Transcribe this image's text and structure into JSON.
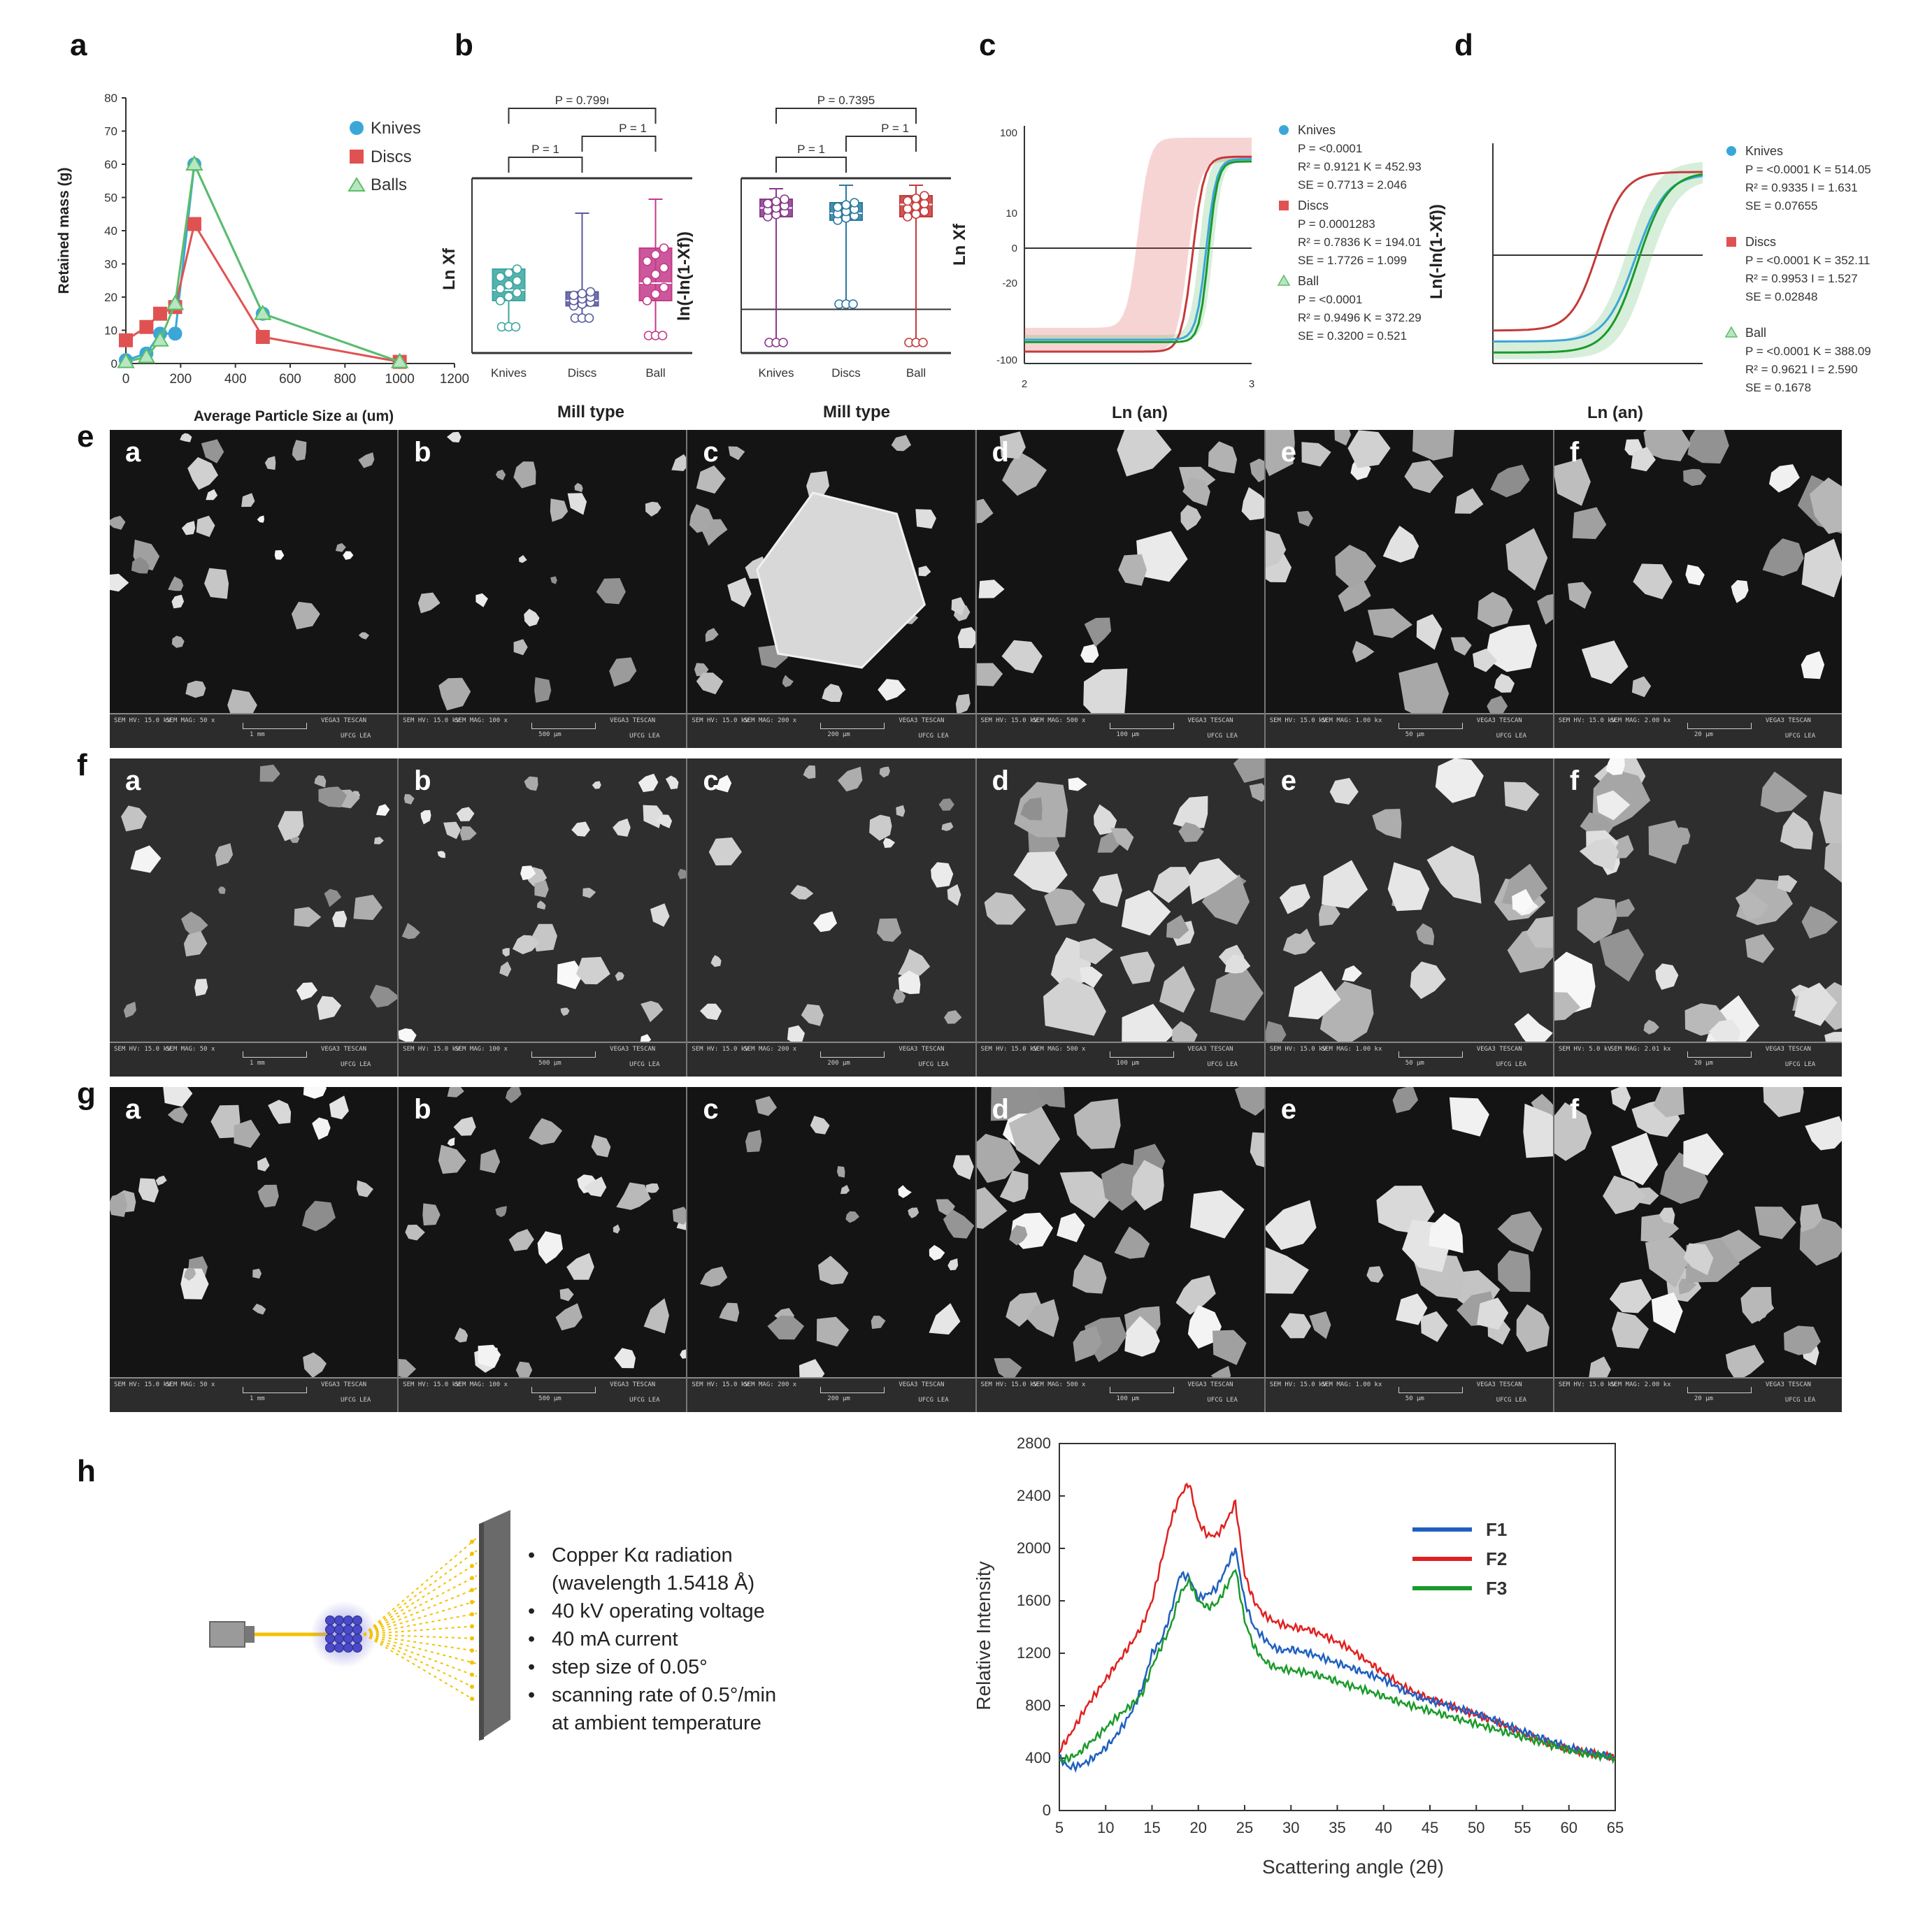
{
  "panel_labels": [
    "a",
    "b",
    "c",
    "d",
    "e",
    "f",
    "g",
    "h"
  ],
  "chart_data": [
    {
      "id": "a",
      "type": "line",
      "xlabel": "Average Particle Size aı (um)",
      "ylabel": "Retained mass (g)",
      "xlim": [
        0,
        1200
      ],
      "ylim": [
        0,
        80
      ],
      "xticks": [
        "0",
        "200",
        "400",
        "600",
        "800",
        "1000",
        "1200"
      ],
      "yticks": [
        "0",
        "10",
        "20",
        "30",
        "40",
        "50",
        "60",
        "70",
        "80"
      ],
      "series": [
        {
          "name": "Knives",
          "color": "#3ba7d8",
          "marker": "circle",
          "x": [
            0,
            75,
            125,
            180,
            250,
            500,
            1000
          ],
          "values": [
            1,
            3,
            9,
            9,
            60,
            15,
            0.5
          ]
        },
        {
          "name": "Discs",
          "color": "#e05252",
          "marker": "square",
          "x": [
            0,
            75,
            125,
            180,
            250,
            500,
            1000
          ],
          "values": [
            7,
            11,
            15,
            17,
            42,
            8,
            0.5
          ]
        },
        {
          "name": "Balls",
          "color": "#5bbd6b",
          "marker": "triangle",
          "x": [
            0,
            75,
            125,
            180,
            250,
            500,
            1000
          ],
          "values": [
            0.5,
            2,
            7,
            18,
            60,
            15,
            0.5
          ]
        }
      ]
    },
    {
      "id": "b1",
      "type": "box",
      "xlabel": "Mill type",
      "ylabel": "Ln Xf",
      "categories": [
        "Knives",
        "Discs",
        "Ball"
      ],
      "colors": [
        "#3aa6a0",
        "#5a5aa0",
        "#c43a8a"
      ],
      "boxes": [
        {
          "min": 0.15,
          "q1": 0.3,
          "median": 0.36,
          "q3": 0.48,
          "max": 0.48
        },
        {
          "min": 0.2,
          "q1": 0.27,
          "median": 0.3,
          "q3": 0.35,
          "max": 0.8
        },
        {
          "min": 0.1,
          "q1": 0.3,
          "median": 0.4,
          "q3": 0.6,
          "max": 0.88
        }
      ],
      "p_values": [
        "P = 1",
        "P = 1",
        "P = 0.799ı"
      ]
    },
    {
      "id": "b2",
      "type": "box",
      "xlabel": "Mill type",
      "ylabel": "ln(-ln(1-Xf))",
      "categories": [
        "Knives",
        "Discs",
        "Ball"
      ],
      "colors": [
        "#8a3a8a",
        "#2a7aa0",
        "#c43a3a"
      ],
      "boxes": [
        {
          "min": 0.06,
          "q1": 0.78,
          "median": 0.83,
          "q3": 0.88,
          "max": 0.94
        },
        {
          "min": 0.28,
          "q1": 0.76,
          "median": 0.8,
          "q3": 0.86,
          "max": 0.96
        },
        {
          "min": 0.06,
          "q1": 0.78,
          "median": 0.85,
          "q3": 0.9,
          "max": 0.96
        }
      ],
      "p_values": [
        "P = 1",
        "P = 1",
        "P = 0.7395"
      ]
    },
    {
      "id": "c",
      "type": "line",
      "xlabel": "Ln (an)",
      "ylabel": "Ln Xf",
      "yticks": [
        "100",
        "10",
        "0",
        "-20",
        "-100"
      ],
      "series": [
        {
          "name": "Knives",
          "color": "#3ba7d8",
          "lines": [
            "P = <0.0001",
            "R² = 0.9121 K = 452.93",
            "SE = 0.7713 = 2.046"
          ]
        },
        {
          "name": "Discs",
          "color": "#e05252",
          "lines": [
            "P = 0.0001283",
            "R² = 0.7836 K = 194.01",
            "SE = 1.7726 = 1.099"
          ]
        },
        {
          "name": "Ball",
          "color": "#5bbd6b",
          "lines": [
            "P = <0.0001",
            "R² = 0.9496 K = 372.29",
            "SE = 0.3200 = 0.521"
          ]
        }
      ]
    },
    {
      "id": "d",
      "type": "line",
      "xlabel": "Ln (an)",
      "ylabel": "Ln(-ln(1-Xf))",
      "series": [
        {
          "name": "Knives",
          "color": "#3ba7d8",
          "lines": [
            "P = <0.0001 K = 514.05",
            "R² = 0.9335 I = 1.631",
            "SE = 0.07655"
          ]
        },
        {
          "name": "Discs",
          "color": "#e05252",
          "lines": [
            "P = <0.0001 K = 352.11",
            "R² = 0.9953 I = 1.527",
            "SE = 0.02848"
          ]
        },
        {
          "name": "Ball",
          "color": "#5bbd6b",
          "lines": [
            "P = <0.0001 K = 388.09",
            "R² = 0.9621 I = 2.590",
            "SE = 0.1678"
          ]
        }
      ]
    },
    {
      "id": "h",
      "type": "line",
      "xlabel": "Scattering angle (2θ)",
      "ylabel": "Relative Intensity",
      "xlim": [
        5,
        65
      ],
      "ylim": [
        0,
        2800
      ],
      "xticks": [
        "5",
        "10",
        "15",
        "20",
        "25",
        "30",
        "35",
        "40",
        "45",
        "50",
        "55",
        "60",
        "65"
      ],
      "yticks": [
        "0",
        "400",
        "800",
        "1200",
        "1600",
        "2000",
        "2400",
        "2800"
      ],
      "x": [
        5,
        6,
        7,
        8,
        9,
        10,
        11,
        12,
        13,
        14,
        15,
        16,
        17,
        18,
        19,
        20,
        21,
        22,
        23,
        24,
        25,
        26,
        27,
        28,
        29,
        30,
        32,
        34,
        36,
        38,
        40,
        42,
        44,
        46,
        48,
        50,
        52,
        54,
        56,
        58,
        60,
        62,
        64,
        65
      ],
      "series": [
        {
          "name": "F1",
          "color": "#1f5fc0",
          "values": [
            400,
            330,
            340,
            370,
            420,
            480,
            560,
            660,
            780,
            950,
            1200,
            1300,
            1500,
            1800,
            1780,
            1620,
            1650,
            1700,
            1850,
            2000,
            1600,
            1400,
            1320,
            1250,
            1220,
            1230,
            1200,
            1150,
            1100,
            1050,
            1000,
            920,
            860,
            820,
            780,
            740,
            690,
            630,
            580,
            530,
            480,
            450,
            420,
            400
          ]
        },
        {
          "name": "F2",
          "color": "#e02020",
          "values": [
            460,
            560,
            680,
            800,
            900,
            1000,
            1100,
            1200,
            1300,
            1420,
            1600,
            1900,
            2200,
            2400,
            2500,
            2200,
            2100,
            2100,
            2200,
            2350,
            1800,
            1600,
            1500,
            1450,
            1420,
            1400,
            1380,
            1320,
            1250,
            1150,
            1050,
            950,
            880,
            830,
            780,
            730,
            680,
            620,
            560,
            510,
            470,
            440,
            420,
            400
          ]
        },
        {
          "name": "F3",
          "color": "#1a9a2a",
          "values": [
            380,
            400,
            430,
            500,
            560,
            630,
            700,
            760,
            820,
            900,
            1100,
            1250,
            1400,
            1650,
            1750,
            1600,
            1550,
            1580,
            1700,
            1850,
            1450,
            1250,
            1150,
            1100,
            1080,
            1070,
            1050,
            1010,
            960,
            920,
            870,
            820,
            780,
            740,
            700,
            660,
            620,
            580,
            540,
            500,
            460,
            430,
            410,
            400
          ]
        }
      ]
    }
  ],
  "sem_rows": [
    {
      "id": "e",
      "tiles": [
        {
          "label": "a",
          "hv": "SEM HV: 15.0 kV",
          "mag": "SEM MAG: 50 x",
          "scale": "1 mm",
          "brand": "VEGA3 TESCAN",
          "lab": "UFCG LEA"
        },
        {
          "label": "b",
          "hv": "SEM HV: 15.0 kV",
          "mag": "SEM MAG: 100 x",
          "scale": "500 μm",
          "brand": "VEGA3 TESCAN",
          "lab": "UFCG LEA"
        },
        {
          "label": "c",
          "hv": "SEM HV: 15.0 kV",
          "mag": "SEM MAG: 200 x",
          "scale": "200 μm",
          "brand": "VEGA3 TESCAN",
          "lab": "UFCG LEA"
        },
        {
          "label": "d",
          "hv": "SEM HV: 15.0 kV",
          "mag": "SEM MAG: 500 x",
          "scale": "100 μm",
          "brand": "VEGA3 TESCAN",
          "lab": "UFCG LEA"
        },
        {
          "label": "e",
          "hv": "SEM HV: 15.0 kV",
          "mag": "SEM MAG: 1.00 kx",
          "scale": "50 μm",
          "brand": "VEGA3 TESCAN",
          "lab": "UFCG LEA"
        },
        {
          "label": "f",
          "hv": "SEM HV: 15.0 kV",
          "mag": "SEM MAG: 2.00 kx",
          "scale": "20 μm",
          "brand": "VEGA3 TESCAN",
          "lab": "UFCG LEA"
        }
      ]
    },
    {
      "id": "f",
      "tiles": [
        {
          "label": "a",
          "hv": "SEM HV: 15.0 kV",
          "mag": "SEM MAG: 50 x",
          "scale": "1 mm",
          "brand": "VEGA3 TESCAN",
          "lab": "UFCG LEA"
        },
        {
          "label": "b",
          "hv": "SEM HV: 15.0 kV",
          "mag": "SEM MAG: 100 x",
          "scale": "500 μm",
          "brand": "VEGA3 TESCAN",
          "lab": "UFCG LEA"
        },
        {
          "label": "c",
          "hv": "SEM HV: 15.0 kV",
          "mag": "SEM MAG: 200 x",
          "scale": "200 μm",
          "brand": "VEGA3 TESCAN",
          "lab": "UFCG LEA"
        },
        {
          "label": "d",
          "hv": "SEM HV: 15.0 kV",
          "mag": "SEM MAG: 500 x",
          "scale": "100 μm",
          "brand": "VEGA3 TESCAN",
          "lab": "UFCG LEA"
        },
        {
          "label": "e",
          "hv": "SEM HV: 15.0 kV",
          "mag": "SEM MAG: 1.00 kx",
          "scale": "50 μm",
          "brand": "VEGA3 TESCAN",
          "lab": "UFCG LEA"
        },
        {
          "label": "f",
          "hv": "SEM HV: 5.0 kV",
          "mag": "SEM MAG: 2.01 kx",
          "scale": "20 μm",
          "brand": "VEGA3 TESCAN",
          "lab": "UFCG LEA"
        }
      ]
    },
    {
      "id": "g",
      "tiles": [
        {
          "label": "a",
          "hv": "SEM HV: 15.0 kV",
          "mag": "SEM MAG: 50 x",
          "scale": "1 mm",
          "brand": "VEGA3 TESCAN",
          "lab": "UFCG LEA"
        },
        {
          "label": "b",
          "hv": "SEM HV: 15.0 kV",
          "mag": "SEM MAG: 100 x",
          "scale": "500 μm",
          "brand": "VEGA3 TESCAN",
          "lab": "UFCG LEA"
        },
        {
          "label": "c",
          "hv": "SEM HV: 15.0 kV",
          "mag": "SEM MAG: 200 x",
          "scale": "200 μm",
          "brand": "VEGA3 TESCAN",
          "lab": "UFCG LEA"
        },
        {
          "label": "d",
          "hv": "SEM HV: 15.0 kV",
          "mag": "SEM MAG: 500 x",
          "scale": "100 μm",
          "brand": "VEGA3 TESCAN",
          "lab": "UFCG LEA"
        },
        {
          "label": "e",
          "hv": "SEM HV: 15.0 kV",
          "mag": "SEM MAG: 1.00 kx",
          "scale": "50 μm",
          "brand": "VEGA3 TESCAN",
          "lab": "UFCG LEA"
        },
        {
          "label": "f",
          "hv": "SEM HV: 15.0 kV",
          "mag": "SEM MAG: 2.00 kx",
          "scale": "20 μm",
          "brand": "VEGA3 TESCAN",
          "lab": "UFCG LEA"
        }
      ]
    }
  ],
  "xrd_conditions": [
    "Copper Kα radiation",
    "(wavelength 1.5418 Å)",
    "40 kV operating voltage",
    "40 mA current",
    "step size of 0.05°",
    "scanning rate of 0.5°/min",
    "at ambient temperature"
  ]
}
